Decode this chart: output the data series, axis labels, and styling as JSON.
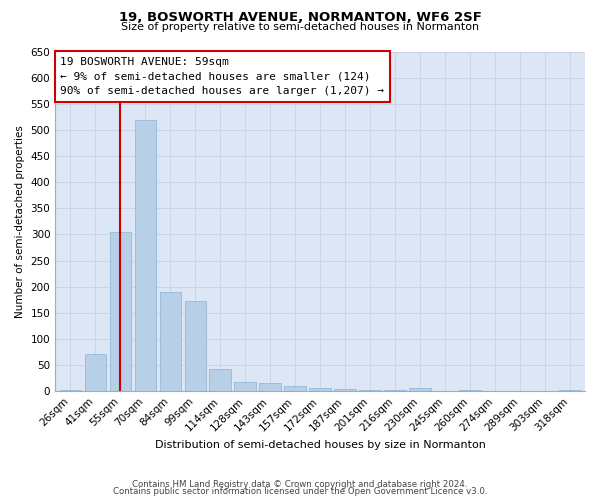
{
  "title": "19, BOSWORTH AVENUE, NORMANTON, WF6 2SF",
  "subtitle": "Size of property relative to semi-detached houses in Normanton",
  "xlabel": "Distribution of semi-detached houses by size in Normanton",
  "ylabel": "Number of semi-detached properties",
  "categories": [
    "26sqm",
    "41sqm",
    "55sqm",
    "70sqm",
    "84sqm",
    "99sqm",
    "114sqm",
    "128sqm",
    "143sqm",
    "157sqm",
    "172sqm",
    "187sqm",
    "201sqm",
    "216sqm",
    "230sqm",
    "245sqm",
    "260sqm",
    "274sqm",
    "289sqm",
    "303sqm",
    "318sqm"
  ],
  "values": [
    3,
    72,
    305,
    519,
    190,
    173,
    42,
    18,
    15,
    10,
    7,
    4,
    2,
    2,
    6,
    0,
    3,
    0,
    0,
    0,
    2
  ],
  "bar_color": "#b8cfe8",
  "bar_edge_color": "#8ab4d8",
  "vline_color": "#cc0000",
  "vline_x_index": 2,
  "annotation_title": "19 BOSWORTH AVENUE: 59sqm",
  "annotation_line1": "← 9% of semi-detached houses are smaller (124)",
  "annotation_line2": "90% of semi-detached houses are larger (1,207) →",
  "annotation_box_facecolor": "#ffffff",
  "annotation_border_color": "#cc0000",
  "ylim": [
    0,
    650
  ],
  "yticks": [
    0,
    50,
    100,
    150,
    200,
    250,
    300,
    350,
    400,
    450,
    500,
    550,
    600,
    650
  ],
  "grid_color": "#c8d4e8",
  "plot_bg_color": "#dce6f5",
  "footer_line1": "Contains HM Land Registry data © Crown copyright and database right 2024.",
  "footer_line2": "Contains public sector information licensed under the Open Government Licence v3.0."
}
